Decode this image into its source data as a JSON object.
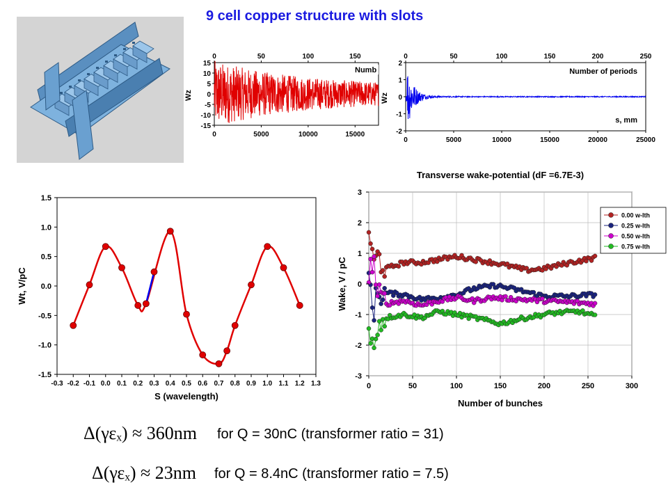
{
  "title": "9 cell copper structure with slots",
  "image": {
    "description_label": "3D model of 9 cell slotted copper structure"
  },
  "colors": {
    "title": "#1a1ae0",
    "red": "#e00000",
    "blue": "#0000ee",
    "magenta": "#cc00cc",
    "green": "#22bb22",
    "darkred": "#b22222",
    "navy": "#1a237e"
  },
  "chart_data": [
    {
      "type": "line",
      "ylabel": "Wz",
      "x_bottom_ticks": [
        "0",
        "5000",
        "10000",
        "15000"
      ],
      "x_top_ticks": [
        "0",
        "50",
        "100",
        "150"
      ],
      "y_ticks": [
        "15",
        "10",
        "5",
        "0",
        "-5",
        "-10",
        "-15"
      ],
      "ylim": [
        -15,
        15
      ],
      "xlim": [
        0,
        17500
      ],
      "annotation": "Numb",
      "series": [
        {
          "color": "#e00000",
          "values_summary": "dense oscillation, amplitude ~±12 decaying to ~±5 across the window"
        }
      ]
    },
    {
      "type": "line",
      "ylabel": "Wz",
      "x_bottom_ticks": [
        "0",
        "5000",
        "10000",
        "15000",
        "20000",
        "25000"
      ],
      "x_top_ticks": [
        "0",
        "50",
        "100",
        "150",
        "200",
        "250"
      ],
      "y_ticks": [
        "2",
        "1",
        "0",
        "-1",
        "-2"
      ],
      "ylim": [
        -2,
        2
      ],
      "xlim": [
        0,
        25000
      ],
      "annotations": [
        "Number of periods",
        "s, mm"
      ],
      "series": [
        {
          "color": "#0000ee",
          "values_summary": "spike up to ~1.9 near s=200, decays to ~0 by s~3000"
        }
      ]
    },
    {
      "type": "scatter",
      "xlabel": "S (wavelength)",
      "ylabel": "Wt, V/pC",
      "xlim": [
        -0.3,
        1.3
      ],
      "ylim": [
        -1.5,
        1.5
      ],
      "x_ticks": [
        "-0.3",
        "-0.2",
        "-0.1",
        "0.0",
        "0.1",
        "0.2",
        "0.3",
        "0.4",
        "0.5",
        "0.6",
        "0.7",
        "0.8",
        "0.9",
        "1.0",
        "1.1",
        "1.2",
        "1.3"
      ],
      "y_ticks": [
        "1.5",
        "1.0",
        "0.5",
        "0.0",
        "-0.5",
        "-1.0",
        "-1.5"
      ],
      "series": [
        {
          "color": "#e00000",
          "points": [
            [
              -0.2,
              -0.67
            ],
            [
              -0.1,
              0.02
            ],
            [
              0.0,
              0.67
            ],
            [
              0.1,
              0.31
            ],
            [
              0.2,
              -0.33
            ],
            [
              0.25,
              -0.3
            ],
            [
              0.4,
              0.93
            ],
            [
              0.5,
              -0.48
            ],
            [
              0.6,
              -1.17
            ],
            [
              0.7,
              -1.32
            ],
            [
              0.75,
              -1.1
            ],
            [
              0.8,
              -0.67
            ],
            [
              0.9,
              0.02
            ],
            [
              1.0,
              0.67
            ],
            [
              1.1,
              0.31
            ],
            [
              1.2,
              -0.33
            ]
          ]
        },
        {
          "color": "#0000ee",
          "points": [
            [
              0.25,
              -0.3
            ],
            [
              0.3,
              0.24
            ]
          ]
        }
      ]
    },
    {
      "type": "scatter",
      "title": "Transverse wake-potential (dF =6.7E-3)",
      "xlabel": "Number of bunches",
      "ylabel": "Wake, V / pC",
      "xlim": [
        0,
        300
      ],
      "ylim": [
        -3,
        3
      ],
      "x_ticks": [
        "0",
        "50",
        "100",
        "150",
        "200",
        "250",
        "300"
      ],
      "y_ticks": [
        "3",
        "2",
        "1",
        "0",
        "-1",
        "-2",
        "-3"
      ],
      "legend_position": "right",
      "series": [
        {
          "name": "0.00 w-lth",
          "color": "#b22222",
          "anchors": [
            [
              0,
              1.85
            ],
            [
              5,
              0.6
            ],
            [
              10,
              0.9
            ],
            [
              20,
              0.5
            ],
            [
              40,
              0.7
            ],
            [
              60,
              0.7
            ],
            [
              80,
              0.8
            ],
            [
              100,
              0.9
            ],
            [
              120,
              0.8
            ],
            [
              150,
              0.65
            ],
            [
              180,
              0.45
            ],
            [
              200,
              0.5
            ],
            [
              230,
              0.7
            ],
            [
              258,
              0.85
            ]
          ]
        },
        {
          "name": "0.25 w-lth",
          "color": "#1a237e",
          "anchors": [
            [
              0,
              0.3
            ],
            [
              5,
              -0.9
            ],
            [
              10,
              -0.3
            ],
            [
              20,
              -0.3
            ],
            [
              40,
              -0.35
            ],
            [
              60,
              -0.5
            ],
            [
              80,
              -0.45
            ],
            [
              100,
              -0.35
            ],
            [
              120,
              -0.15
            ],
            [
              145,
              -0.05
            ],
            [
              170,
              -0.2
            ],
            [
              200,
              -0.4
            ],
            [
              230,
              -0.4
            ],
            [
              258,
              -0.35
            ]
          ]
        },
        {
          "name": "0.50 w-lth",
          "color": "#cc00cc",
          "anchors": [
            [
              0,
              0.2
            ],
            [
              5,
              0.9
            ],
            [
              10,
              -0.4
            ],
            [
              20,
              -0.65
            ],
            [
              40,
              -0.55
            ],
            [
              60,
              -0.7
            ],
            [
              80,
              -0.55
            ],
            [
              100,
              -0.45
            ],
            [
              120,
              -0.55
            ],
            [
              140,
              -0.45
            ],
            [
              170,
              -0.5
            ],
            [
              200,
              -0.55
            ],
            [
              230,
              -0.6
            ],
            [
              258,
              -0.65
            ]
          ]
        },
        {
          "name": "0.75 w-lth",
          "color": "#22bb22",
          "anchors": [
            [
              0,
              -1.7
            ],
            [
              5,
              -2.1
            ],
            [
              10,
              -1.3
            ],
            [
              20,
              -1.1
            ],
            [
              40,
              -1.0
            ],
            [
              60,
              -1.1
            ],
            [
              80,
              -0.9
            ],
            [
              100,
              -1.0
            ],
            [
              120,
              -1.1
            ],
            [
              150,
              -1.3
            ],
            [
              180,
              -1.1
            ],
            [
              210,
              -0.95
            ],
            [
              240,
              -0.9
            ],
            [
              258,
              -1.05
            ]
          ]
        }
      ]
    }
  ],
  "equations": [
    {
      "text": "Δ(γεₓ) ≈ 360nm",
      "note": "for Q = 30nC (transformer ratio = 31)"
    },
    {
      "text": "Δ(γεₓ) ≈ 23nm",
      "note": "for Q = 8.4nC (transformer ratio = 7.5)"
    }
  ]
}
